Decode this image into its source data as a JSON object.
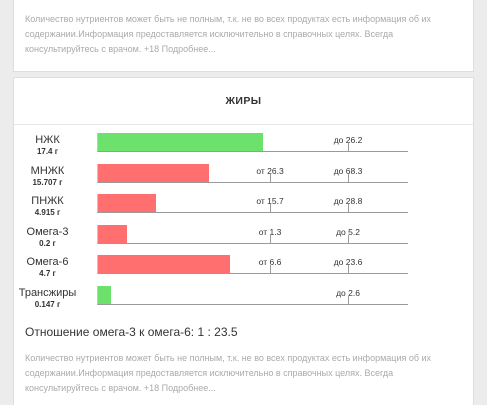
{
  "top_card": {
    "disclaimer": "Количество нутриентов может быть не полным, т.к. не во всех продуктах есть информация об их содержании.Информация предоставляется исключительно в справочных целях. Всегда консультируйтесь с врачом. +18 Подробнее...",
    "colors": {
      "bar_left": "#3d9be0",
      "bar_right": "#9a5bc0"
    }
  },
  "fats_card": {
    "title": "ЖИРЫ",
    "rows": [
      {
        "name": "НЖК",
        "value": "17.4 г",
        "fill": 0.53,
        "color": "green",
        "from_label": "",
        "to_label": "до 26.2",
        "from": null,
        "to": 26.2
      },
      {
        "name": "МНЖК",
        "value": "15.707 г",
        "fill": 0.357,
        "color": "red",
        "from_label": "от 26.3",
        "to_label": "до 68.3",
        "from": 26.3,
        "to": 68.3
      },
      {
        "name": "ПНЖК",
        "value": "4.915 г",
        "fill": 0.186,
        "color": "red",
        "from_label": "от 15.7",
        "to_label": "до 28.8",
        "from": 15.7,
        "to": 28.8
      },
      {
        "name": "Омега-3",
        "value": "0.2 г",
        "fill": 0.092,
        "color": "red",
        "from_label": "от 1.3",
        "to_label": "до 5.2",
        "from": 1.3,
        "to": 5.2
      },
      {
        "name": "Омега-6",
        "value": "4.7 г",
        "fill": 0.424,
        "color": "red",
        "from_label": "от 6.6",
        "to_label": "до 23.6",
        "from": 6.6,
        "to": 23.6
      },
      {
        "name": "Трансжиры",
        "value": "0.147 г",
        "fill": 0.043,
        "color": "green",
        "from_label": "",
        "to_label": "до 2.6",
        "from": null,
        "to": 2.6
      }
    ],
    "ratio_text": "Отношение омега-3 к омега-6: 1 : 23.5",
    "disclaimer": "Количество нутриентов может быть не полным, т.к. не во всех продуктах есть информация об их содержании.Информация предоставляется исключительно в справочных целях. Всегда консультируйтесь с врачом. +18 Подробнее...",
    "colors": {
      "within_norm": "#6ce26c",
      "below_norm": "#ff6f6f"
    }
  }
}
